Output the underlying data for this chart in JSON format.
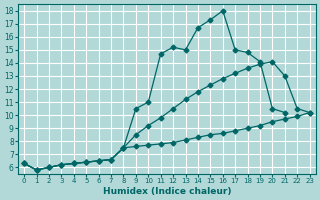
{
  "xlabel": "Humidex (Indice chaleur)",
  "background_color": "#b2d8d8",
  "grid_color": "#ffffff",
  "line_color": "#006666",
  "ylim": [
    5.5,
    18.5
  ],
  "xlim": [
    -0.5,
    23.5
  ],
  "yticks": [
    6,
    7,
    8,
    9,
    10,
    11,
    12,
    13,
    14,
    15,
    16,
    17,
    18
  ],
  "xticks": [
    0,
    1,
    2,
    3,
    4,
    5,
    6,
    7,
    8,
    9,
    10,
    11,
    12,
    13,
    14,
    15,
    16,
    17,
    18,
    19,
    20,
    21,
    22,
    23
  ],
  "x_main": [
    0,
    1,
    2,
    3,
    4,
    5,
    6,
    7,
    8,
    9,
    10,
    11,
    12,
    13,
    14,
    15,
    16,
    17,
    18,
    19,
    20,
    21,
    22,
    23
  ],
  "y_line1": [
    6.3,
    5.8,
    6.0,
    6.2,
    6.3,
    6.4,
    6.5,
    6.6,
    7.5,
    10.5,
    11.0,
    14.7,
    15.2,
    15.0,
    16.7,
    17.3,
    18.0,
    15.0,
    14.8,
    14.1,
    10.5,
    10.2,
    null,
    null
  ],
  "y_line2": [
    6.3,
    5.8,
    6.0,
    6.2,
    6.3,
    6.4,
    6.5,
    6.6,
    7.5,
    8.5,
    9.2,
    9.8,
    10.5,
    11.2,
    11.8,
    12.3,
    12.8,
    13.2,
    13.6,
    13.9,
    14.1,
    13.0,
    10.5,
    10.2
  ],
  "y_line3": [
    6.3,
    5.8,
    6.0,
    6.2,
    6.3,
    6.4,
    6.5,
    6.6,
    7.5,
    7.6,
    7.7,
    7.8,
    7.9,
    8.1,
    8.3,
    8.5,
    8.6,
    8.8,
    9.0,
    9.2,
    9.5,
    9.7,
    9.9,
    10.2
  ]
}
